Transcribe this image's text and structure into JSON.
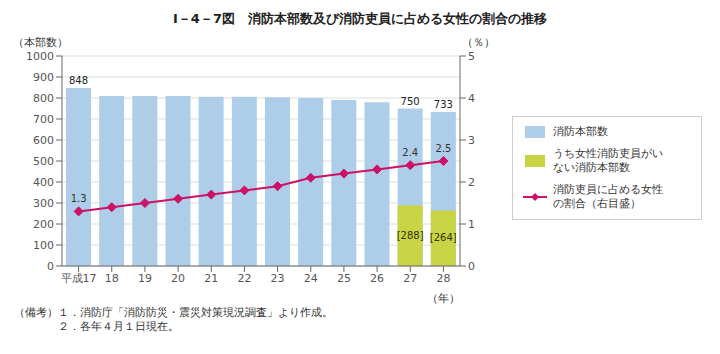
{
  "chart_data": {
    "type": "bar",
    "title": "I－4－7図　消防本部数及び消防吏員に占める女性の割合の推移",
    "categories": [
      "平成17",
      "18",
      "19",
      "20",
      "21",
      "22",
      "23",
      "24",
      "25",
      "26",
      "27",
      "28"
    ],
    "series": [
      {
        "name": "消防本部数",
        "type": "bar",
        "color": "#aecde8",
        "values": [
          848,
          810,
          810,
          810,
          806,
          806,
          803,
          800,
          790,
          780,
          750,
          733
        ],
        "value_labels": [
          "848",
          null,
          null,
          null,
          null,
          null,
          null,
          null,
          null,
          null,
          "750",
          "733"
        ]
      },
      {
        "name": "うち女性消防吏員がい\nない消防本部数",
        "type": "bar",
        "color": "#c8d444",
        "values": [
          0,
          0,
          0,
          0,
          0,
          0,
          0,
          0,
          0,
          0,
          288,
          264
        ],
        "value_labels": [
          null,
          null,
          null,
          null,
          null,
          null,
          null,
          null,
          null,
          null,
          "[288]",
          "[264]"
        ]
      },
      {
        "name": "消防吏員に占める女性\nの割合（右目盛）",
        "type": "line",
        "axis": "y2",
        "color": "#cc1166",
        "marker": "diamond",
        "line_style": "solid",
        "values": [
          1.3,
          1.4,
          1.5,
          1.6,
          1.7,
          1.8,
          1.9,
          2.1,
          2.2,
          2.3,
          2.4,
          2.5
        ],
        "value_labels": [
          "1.3",
          null,
          null,
          null,
          null,
          null,
          null,
          null,
          null,
          null,
          "2.4",
          "2.5"
        ]
      }
    ],
    "xlabel": "（年）",
    "ylabel": "（本部数）",
    "y2label": "（％）",
    "ylim": [
      0,
      1000
    ],
    "yticks": [
      0,
      100,
      200,
      300,
      400,
      500,
      600,
      700,
      800,
      900,
      1000
    ],
    "y2lim": [
      0,
      5
    ],
    "y2ticks": [
      0,
      1,
      2,
      3,
      4,
      5
    ],
    "grid": true,
    "legend": "right",
    "stacked": false,
    "annotations": [
      "（備考）１．消防庁「消防防災・震災対策現況調査」より作成。",
      "　　　　２．各年４月１日現在。"
    ]
  }
}
